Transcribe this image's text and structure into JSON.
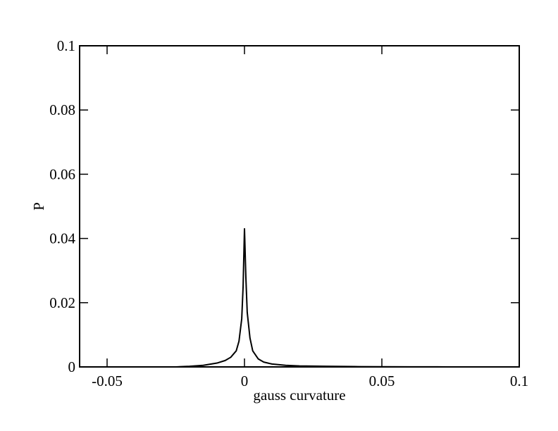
{
  "chart_data": {
    "type": "line",
    "x_label": "gauss curvature",
    "y_label": "P",
    "x": [
      -0.025,
      -0.02,
      -0.015,
      -0.01,
      -0.007,
      -0.005,
      -0.003,
      -0.002,
      -0.001,
      -0.0005,
      0,
      0.0005,
      0.001,
      0.002,
      0.003,
      0.005,
      0.007,
      0.01,
      0.015,
      0.02,
      0.03,
      0.04,
      0.05,
      0.06,
      0.07,
      0.08
    ],
    "series": [
      {
        "color": "#000000",
        "values": [
          0,
          0.0002,
          0.0005,
          0.0012,
          0.002,
          0.003,
          0.005,
          0.008,
          0.015,
          0.025,
          0.043,
          0.028,
          0.017,
          0.009,
          0.005,
          0.0025,
          0.0015,
          0.0009,
          0.0005,
          0.0003,
          0.0002,
          0.0001,
          5e-05,
          3e-05,
          2e-05,
          0
        ]
      }
    ],
    "xlim": [
      -0.06,
      0.1
    ],
    "xticks": [
      -0.05,
      0,
      0.05,
      0.1
    ],
    "ylim": [
      0,
      0.1
    ],
    "yticks": [
      0,
      0.02,
      0.04,
      0.06,
      0.08,
      0.1
    ]
  }
}
